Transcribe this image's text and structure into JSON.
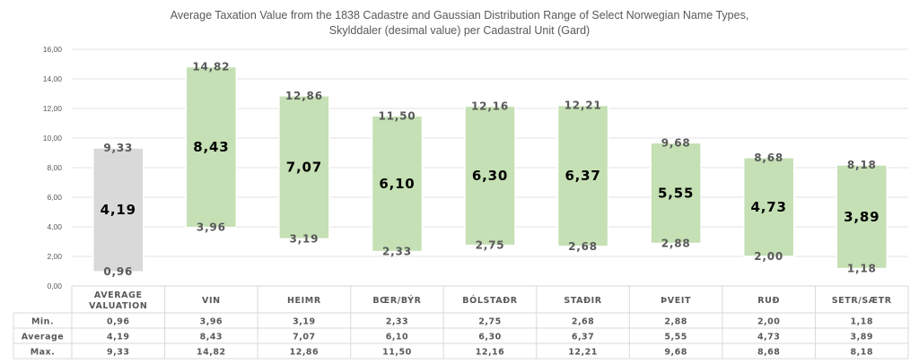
{
  "chart_data": {
    "type": "bar",
    "title_line1": "Average Taxation Value from the 1838 Cadastre and Gaussian Distribution Range of Select Norwegian Name Types,",
    "title_line2": "Skylddaler (desimal value) per Cadastral Unit (Gard)",
    "categories": [
      [
        "AVERAGE",
        "VALUATION"
      ],
      [
        "VIN"
      ],
      [
        "HEIMR"
      ],
      [
        "BŒR/BÝR"
      ],
      [
        "BÓLSTAÐR"
      ],
      [
        "STAÐIR"
      ],
      [
        "ÞVEIT"
      ],
      [
        "RUÐ"
      ],
      [
        "SETR/SÆTR"
      ]
    ],
    "series": [
      {
        "name": "Min.",
        "values": [
          0.96,
          3.96,
          3.19,
          2.33,
          2.75,
          2.68,
          2.88,
          2.0,
          1.18
        ]
      },
      {
        "name": "Average",
        "values": [
          4.19,
          8.43,
          7.07,
          6.1,
          6.3,
          6.37,
          5.55,
          4.73,
          3.89
        ]
      },
      {
        "name": "Max.",
        "values": [
          9.33,
          14.82,
          12.86,
          11.5,
          12.16,
          12.21,
          9.68,
          8.68,
          8.18
        ]
      }
    ],
    "ylim": [
      0,
      16
    ],
    "ytick_step": 2,
    "grid": true,
    "bar_colors": [
      "#d9d9d9",
      "#c5e0b4",
      "#c5e0b4",
      "#c5e0b4",
      "#c5e0b4",
      "#c5e0b4",
      "#c5e0b4",
      "#c5e0b4",
      "#c5e0b4"
    ],
    "bar_edge": "#ffffff",
    "decimal_separator": ","
  }
}
